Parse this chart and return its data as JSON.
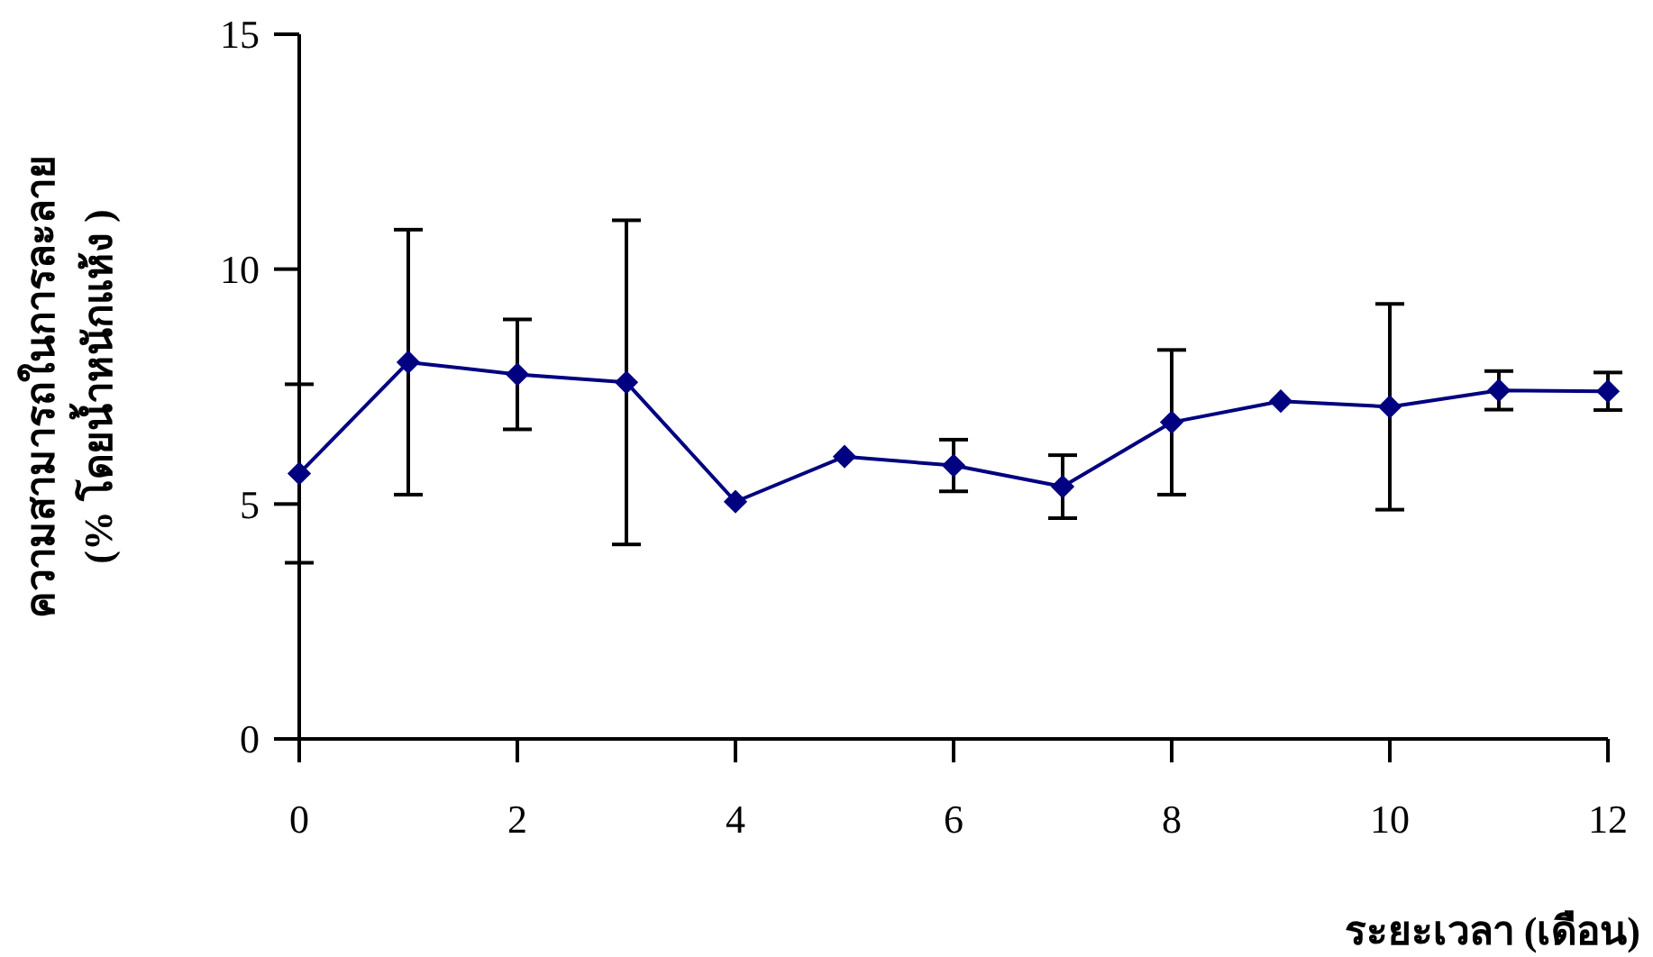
{
  "chart_data": {
    "type": "line",
    "xlabel": "ระยะเวลา (เดือน)",
    "ylabel": "ความสามารถในการละลาย\n(% โดยน้ำหนักแห้ง )",
    "x": [
      0,
      1,
      2,
      3,
      4,
      5,
      6,
      7,
      8,
      9,
      10,
      11,
      12
    ],
    "series": [
      {
        "color": "#000080",
        "values": [
          5.65,
          8.02,
          7.76,
          7.59,
          5.05,
          6.01,
          5.82,
          5.37,
          6.74,
          7.19,
          7.07,
          7.42,
          7.4
        ],
        "errors": [
          1.9,
          2.82,
          1.17,
          3.45,
          null,
          null,
          0.55,
          0.67,
          1.54,
          null,
          2.19,
          0.41,
          0.4
        ]
      }
    ],
    "xlim": [
      0,
      12
    ],
    "xticks": [
      0,
      2,
      4,
      6,
      8,
      10,
      12
    ],
    "ylim": [
      0,
      15
    ],
    "yticks": [
      0,
      5,
      10,
      15
    ],
    "grid": false,
    "marker": "diamond",
    "line_style": "solid"
  }
}
